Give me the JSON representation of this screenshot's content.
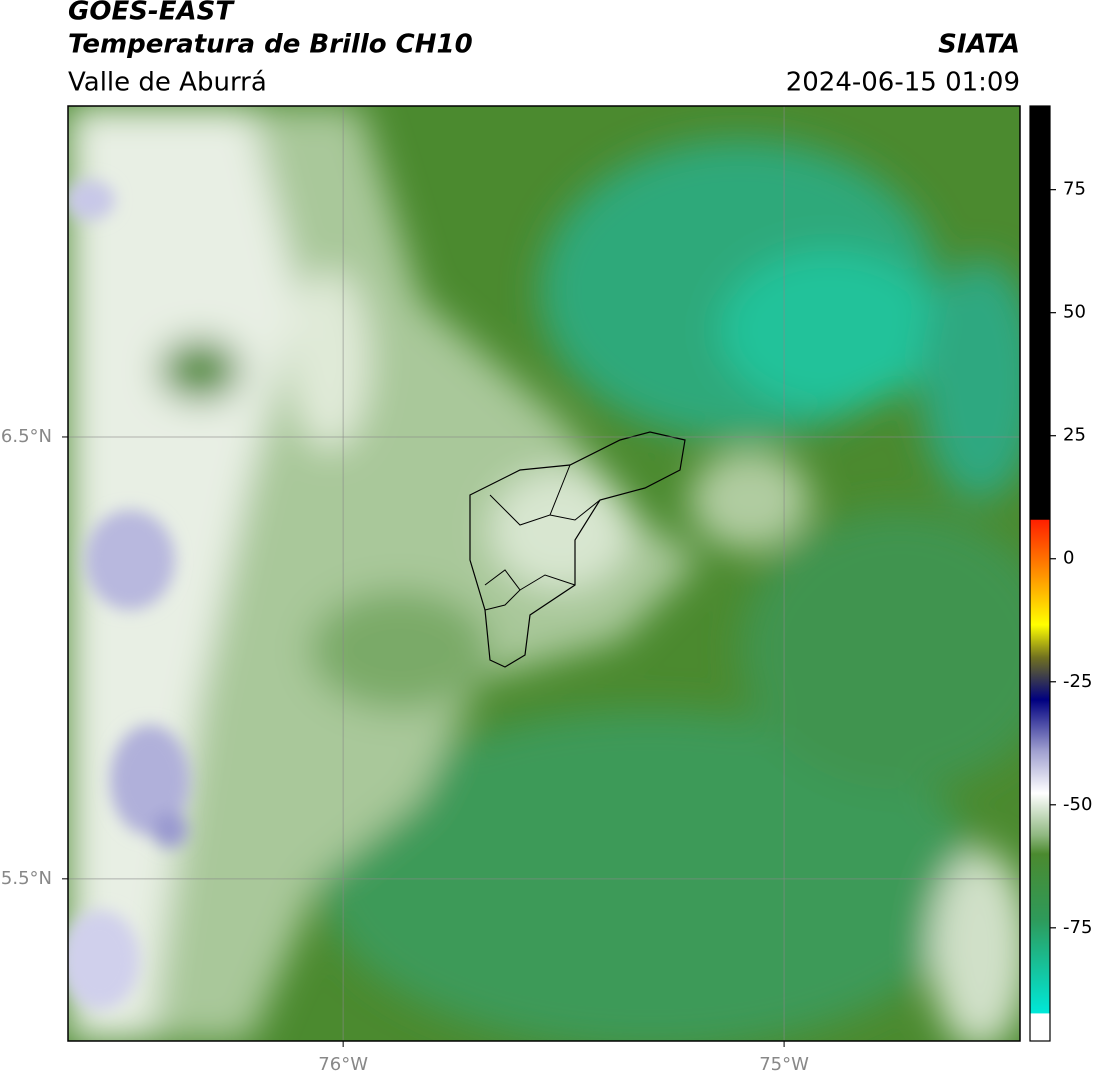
{
  "header": {
    "title": "GOES-EAST",
    "subtitle": "Temperatura de Brillo CH10",
    "region": "Valle de Aburrá",
    "source": "SIATA",
    "datetime": "2024-06-15 01:09"
  },
  "map": {
    "xlim": [
      -76.624,
      -74.465
    ],
    "ylim": [
      5.133,
      7.249
    ],
    "xticks": [
      {
        "value": -76,
        "label": "76°W"
      },
      {
        "value": -75,
        "label": "75°W"
      }
    ],
    "yticks": [
      {
        "value": 6.5,
        "label": "6.5°N"
      },
      {
        "value": 5.5,
        "label": "5.5°N"
      }
    ],
    "grid": true
  },
  "colorbar": {
    "lim": [
      -98,
      92
    ],
    "ticks": [
      75,
      50,
      25,
      0,
      -25,
      -50,
      -75
    ]
  }
}
